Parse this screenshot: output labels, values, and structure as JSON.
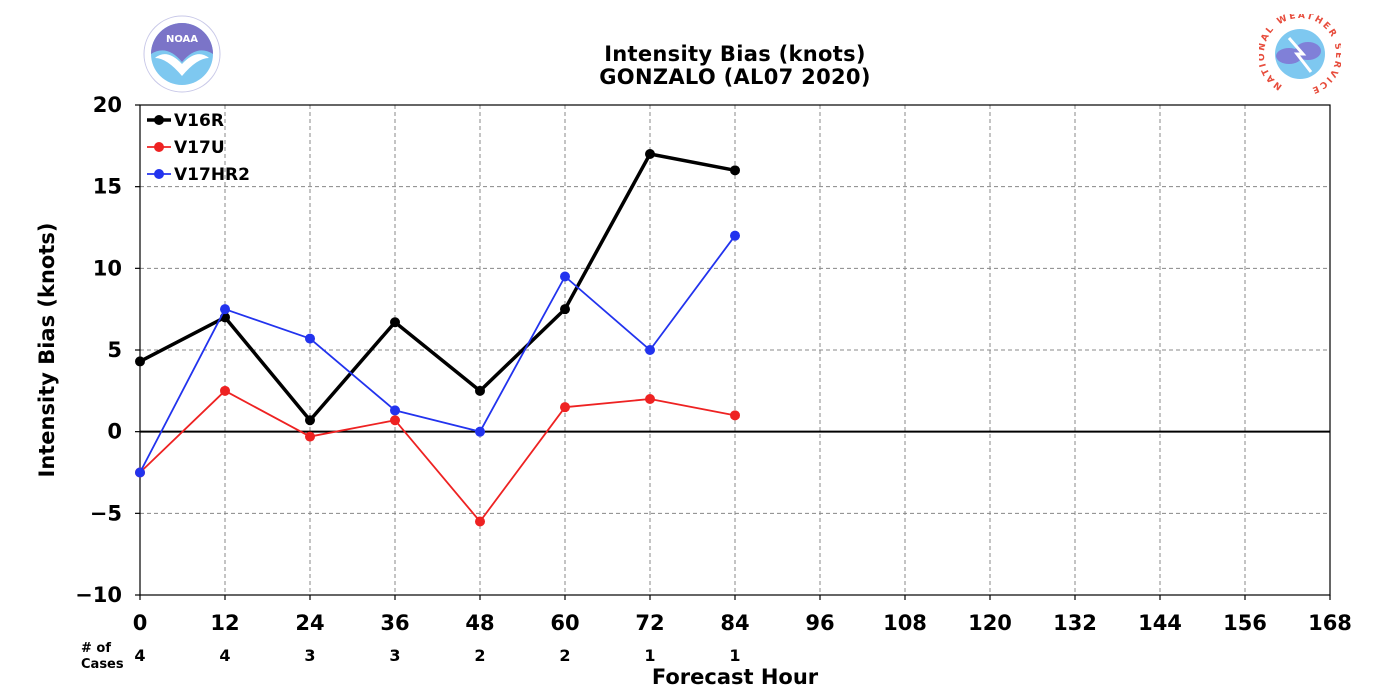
{
  "chart_data": {
    "type": "line",
    "title": "Intensity Bias (knots)",
    "subtitle": "GONZALO (AL07 2020)",
    "xlabel": "Forecast Hour",
    "ylabel": "Intensity Bias (knots)",
    "xlim": [
      0,
      168
    ],
    "ylim": [
      -10,
      20
    ],
    "x_ticks": [
      0,
      12,
      24,
      36,
      48,
      60,
      72,
      84,
      96,
      108,
      120,
      132,
      144,
      156,
      168
    ],
    "y_ticks": [
      -10,
      -5,
      0,
      5,
      10,
      15,
      20
    ],
    "y_tick_labels": [
      "−10",
      "−5",
      "0",
      "5",
      "10",
      "15",
      "20"
    ],
    "grid": true,
    "legend_position": "top-left",
    "series": [
      {
        "name": "V16R",
        "color": "#000000",
        "x": [
          0,
          12,
          24,
          36,
          48,
          60,
          72,
          84
        ],
        "values": [
          4.3,
          7.0,
          0.7,
          6.7,
          2.5,
          7.5,
          17.0,
          16.0
        ]
      },
      {
        "name": "V17U",
        "color": "#ee2222",
        "x": [
          0,
          12,
          24,
          36,
          48,
          60,
          72,
          84
        ],
        "values": [
          -2.5,
          2.5,
          -0.3,
          0.7,
          -5.5,
          1.5,
          2.0,
          1.0
        ]
      },
      {
        "name": "V17HR2",
        "color": "#2233ee",
        "x": [
          0,
          12,
          24,
          36,
          48,
          60,
          72,
          84
        ],
        "values": [
          -2.5,
          7.5,
          5.7,
          1.3,
          0.0,
          9.5,
          5.0,
          12.0
        ]
      }
    ],
    "cases_label_line1": "# of",
    "cases_label_line2": "Cases",
    "cases": {
      "x": [
        0,
        12,
        24,
        36,
        48,
        60,
        72,
        84
      ],
      "counts": [
        "4",
        "4",
        "3",
        "3",
        "2",
        "2",
        "1",
        "1"
      ]
    }
  },
  "logos": {
    "left": {
      "name": "NOAA",
      "text": "NOAA",
      "colors": [
        "#7b74c8",
        "#7ec8f0"
      ]
    },
    "right": {
      "name": "National Weather Service",
      "ring_text": "NATIONAL WEATHER SERVICE",
      "colors": [
        "#e74c3c",
        "#8080d8",
        "#7ec8f0"
      ]
    }
  }
}
